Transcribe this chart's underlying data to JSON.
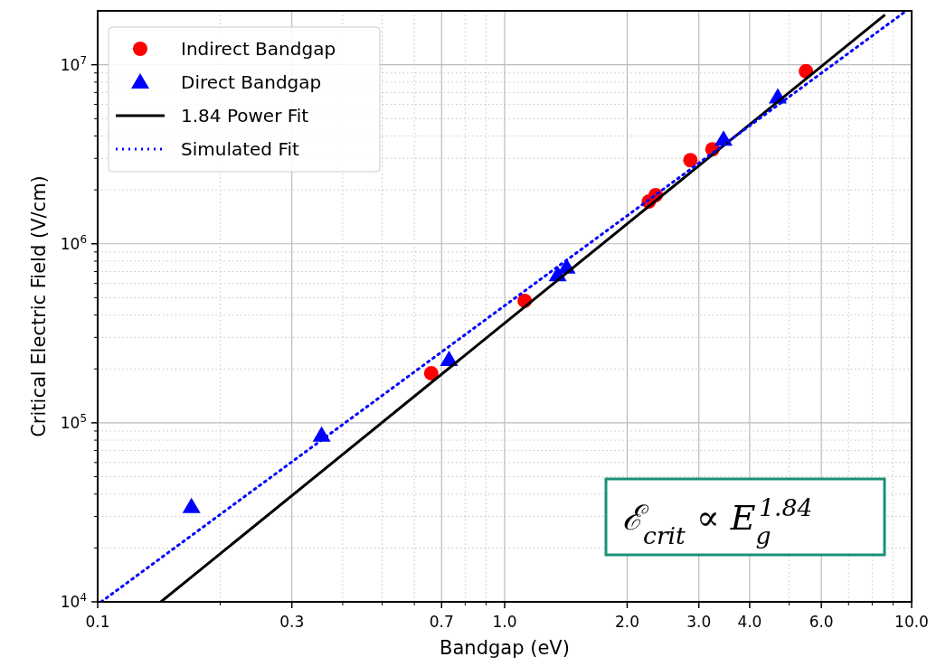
{
  "chart_data": {
    "type": "scatter",
    "xlabel": "Bandgap (eV)",
    "ylabel": "Critical Electric Field (V/cm)",
    "log": "xy",
    "grid": true,
    "legend": "top left",
    "xlim": [
      0.1,
      10
    ],
    "ylim": [
      10000,
      20000000
    ],
    "xticks": [
      {
        "value": 0.1,
        "label": "0.1"
      },
      {
        "value": 0.3,
        "label": "0.3"
      },
      {
        "value": 0.7,
        "label": "0.7"
      },
      {
        "value": 1,
        "label": "1.0"
      },
      {
        "value": 2,
        "label": "2.0"
      },
      {
        "value": 3,
        "label": "3.0"
      },
      {
        "value": 4,
        "label": "4.0"
      },
      {
        "value": 6,
        "label": "6.0"
      },
      {
        "value": 10,
        "label": "10.0"
      }
    ],
    "yticks": [
      {
        "value": 10000,
        "label": "10$^{4}$"
      },
      {
        "value": 100000,
        "label": "10$^{5}$"
      },
      {
        "value": 1000000,
        "label": "10$^{6}$"
      },
      {
        "value": 10000000,
        "label": "10$^{7}$"
      }
    ],
    "series": [
      {
        "name": "Indirect Bandgap",
        "marker": "circle",
        "color": "#ff0000",
        "x": [
          0.66,
          1.12,
          2.26,
          2.35,
          2.86,
          3.24,
          5.5
        ],
        "values": [
          189000,
          480000,
          1720000,
          1870000,
          2930000,
          3370000,
          9200000
        ]
      },
      {
        "name": "Direct Bandgap",
        "marker": "triangle",
        "color": "#0000ff",
        "x": [
          0.17,
          0.355,
          0.73,
          1.35,
          1.42,
          3.45,
          4.69
        ],
        "values": [
          34000,
          85000,
          225000,
          670000,
          740000,
          3830000,
          6600000
        ]
      },
      {
        "name": "1.84 Power Fit",
        "type": "line",
        "marker": "none",
        "line_style": "solid",
        "color": "#000000",
        "x": [
          0.143,
          8.6
        ],
        "values": [
          10000,
          19000000
        ]
      },
      {
        "name": "Simulated Fit",
        "type": "line",
        "marker": "none",
        "line_style": "dotted",
        "color": "#0000ff",
        "x": [
          0.102,
          9.7
        ],
        "values": [
          10000,
          20000000
        ]
      }
    ],
    "annotations": [
      "ℰ$_{crit}$ ∝ E$_{g}$$^{1.84}$"
    ]
  }
}
